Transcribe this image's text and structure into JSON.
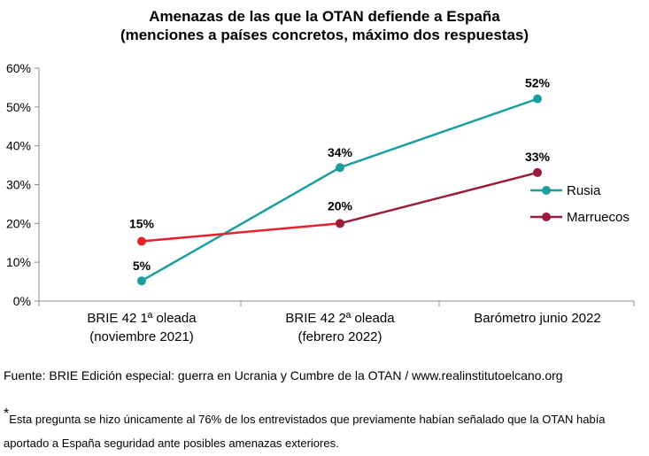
{
  "title_line1": "Amenazas de las que la OTAN defiende a España",
  "title_line2": "(menciones a países concretos, máximo dos respuestas)",
  "source": "Fuente: BRIE Edición especial: guerra en Ucrania y Cumbre de la OTAN / www.realinstitutoelcano.org",
  "footnote": {
    "mark": "*",
    "text": "Esta pregunta se hizo únicamente al 76% de los entrevistados que previamente habían señalado que la OTAN había aportado a España seguridad ante posibles amenazas exteriores."
  },
  "chart_data": {
    "type": "line",
    "categories": [
      [
        "BRIE 42 1ª oleada",
        "(noviembre 2021)"
      ],
      [
        "BRIE 42 2ª oleada",
        "(febrero 2022)"
      ],
      [
        "Barómetro junio 2022"
      ]
    ],
    "y_ticks": [
      "0%",
      "10%",
      "20%",
      "30%",
      "40%",
      "50%",
      "60%"
    ],
    "ylim": [
      0,
      60
    ],
    "grid": false,
    "legend": "right",
    "series": [
      {
        "name": "Rusia",
        "color": "#1a9e9e",
        "values": [
          5.2,
          34.4,
          52.1
        ],
        "labels": [
          "5%",
          "34%",
          "52%"
        ]
      },
      {
        "name": "Marruecos",
        "color": "#e8202a",
        "color_segment2": "#9b1c3a",
        "values": [
          15.4,
          20,
          33.1
        ],
        "labels": [
          "15%",
          "20%",
          "33%"
        ]
      }
    ]
  }
}
